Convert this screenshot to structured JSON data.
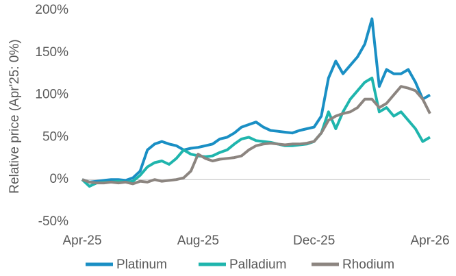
{
  "chart_data": {
    "type": "line",
    "y_label": "Relative price (Apr'25: 0%)",
    "categories": [
      "Apr-25",
      null,
      null,
      null,
      null,
      null,
      null,
      null,
      null,
      null,
      null,
      null,
      null,
      null,
      null,
      null,
      "Aug-25",
      null,
      null,
      null,
      null,
      null,
      null,
      null,
      null,
      null,
      null,
      null,
      null,
      null,
      null,
      null,
      "Dec-25",
      null,
      null,
      null,
      null,
      null,
      null,
      null,
      null,
      null,
      null,
      null,
      null,
      null,
      null,
      null,
      "Apr-26"
    ],
    "series": [
      {
        "name": "Platinum",
        "color": "#1a8fc4",
        "values": [
          0,
          -3,
          -2,
          -1,
          0,
          0,
          -1,
          2,
          10,
          35,
          42,
          45,
          42,
          40,
          35,
          37,
          38,
          40,
          42,
          48,
          50,
          55,
          62,
          65,
          68,
          62,
          58,
          57,
          56,
          55,
          58,
          60,
          62,
          75,
          120,
          140,
          125,
          135,
          145,
          160,
          190,
          110,
          130,
          125,
          125,
          130,
          115,
          95,
          100
        ]
      },
      {
        "name": "Palladium",
        "color": "#1fb5ad",
        "values": [
          0,
          -8,
          -4,
          -3,
          -3,
          -2,
          -3,
          -2,
          5,
          15,
          20,
          22,
          18,
          25,
          35,
          30,
          28,
          27,
          28,
          32,
          35,
          42,
          48,
          50,
          46,
          45,
          44,
          42,
          40,
          40,
          41,
          42,
          45,
          55,
          80,
          60,
          80,
          95,
          105,
          115,
          120,
          80,
          85,
          75,
          80,
          70,
          60,
          45,
          50
        ]
      },
      {
        "name": "Rhodium",
        "color": "#8c8580",
        "values": [
          0,
          -3,
          -4,
          -4,
          -3,
          -4,
          -3,
          -5,
          -2,
          -3,
          0,
          -2,
          -1,
          0,
          2,
          10,
          30,
          25,
          22,
          24,
          25,
          26,
          28,
          35,
          40,
          42,
          43,
          42,
          41,
          42,
          42,
          43,
          45,
          55,
          70,
          75,
          78,
          80,
          85,
          95,
          95,
          85,
          90,
          100,
          110,
          108,
          105,
          95,
          78
        ]
      }
    ],
    "ylim": [
      -50,
      200
    ],
    "yticks": [
      {
        "value": -50,
        "label": "-50%"
      },
      {
        "value": 0,
        "label": "0%"
      },
      {
        "value": 50,
        "label": "50%"
      },
      {
        "value": 100,
        "label": "100%"
      },
      {
        "value": 150,
        "label": "150%"
      },
      {
        "value": 200,
        "label": "200%"
      }
    ],
    "zero_line": true,
    "grid": false,
    "legend": "bottom"
  }
}
